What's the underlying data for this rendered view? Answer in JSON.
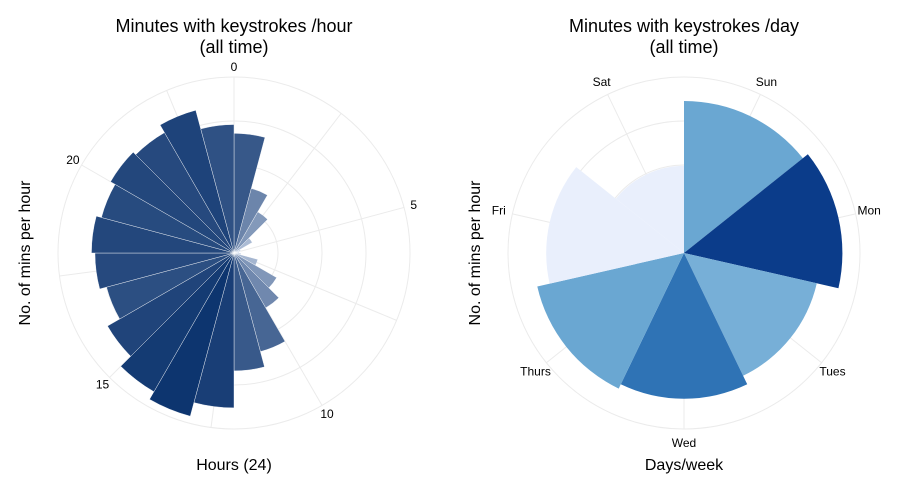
{
  "chart_data": [
    {
      "type": "polar-bar",
      "title": "Minutes with keystrokes /hour",
      "subtitle": "(all time)",
      "xlabel": "Hours (24)",
      "ylabel": "No. of mins per hour",
      "tick_labels": [
        "0",
        "5",
        "10",
        "15",
        "20"
      ],
      "tick_positions": [
        0,
        5,
        10,
        15,
        20
      ],
      "categories": [
        "0",
        "1",
        "2",
        "3",
        "4",
        "5",
        "6",
        "7",
        "8",
        "9",
        "10",
        "11",
        "12",
        "13",
        "14",
        "15",
        "16",
        "17",
        "18",
        "19",
        "20",
        "21",
        "22",
        "23"
      ],
      "values": [
        0.68,
        0.38,
        0.27,
        0.12,
        0.04,
        0.03,
        0.04,
        0.14,
        0.28,
        0.36,
        0.58,
        0.67,
        0.88,
        0.96,
        0.91,
        0.83,
        0.75,
        0.79,
        0.81,
        0.78,
        0.81,
        0.79,
        0.84,
        0.73
      ],
      "ylim": [
        0,
        1
      ],
      "grid": true,
      "color_scale": [
        "#eaf1fd",
        "#08306b"
      ]
    },
    {
      "type": "polar-bar",
      "title": "Minutes with keystrokes /day",
      "subtitle": "(all time)",
      "xlabel": "Days/week",
      "ylabel": "No. of mins per hour",
      "categories": [
        "Sun",
        "Mon",
        "Tues",
        "Wed",
        "Thurs",
        "Fri",
        "Sat"
      ],
      "values": [
        0.96,
        1.0,
        0.86,
        0.92,
        0.95,
        0.87,
        0.55
      ],
      "colors": [
        "#6aa7d2",
        "#0b3c8a",
        "#77afd7",
        "#2f73b5",
        "#6aa7d2",
        "#e9effc",
        "#e9effc"
      ],
      "ylim": [
        0,
        1
      ],
      "grid": true
    }
  ]
}
